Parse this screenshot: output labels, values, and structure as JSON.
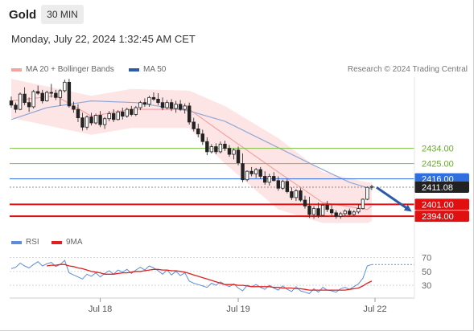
{
  "header": {
    "instrument": "Gold",
    "timeframe": "30 MIN"
  },
  "timestamp": "Monday, July 22, 2024 1:32:45 AM CET",
  "legend": {
    "ma20": {
      "label": "MA 20 + Bollinger Bands",
      "color": "#f4a3a3"
    },
    "ma50": {
      "label": "MA 50",
      "color": "#2b5aa8"
    }
  },
  "copyright": "Research © 2024 Trading Central",
  "rsi_legend": {
    "rsi": {
      "label": "RSI",
      "color": "#5b8dd9"
    },
    "ma9": {
      "label": "9MA",
      "color": "#e02020"
    }
  },
  "chart_data": [
    {
      "type": "candlestick",
      "x_tick_labels": [
        "Jul 18",
        "Jul 19",
        "Jul 22"
      ],
      "ylim": [
        2386,
        2476
      ],
      "candles": [
        [
          2462.0,
          2464.5,
          2458.0,
          2459.5
        ],
        [
          2459.5,
          2461.0,
          2455.0,
          2457.0
        ],
        [
          2457.0,
          2467.0,
          2456.5,
          2466.0
        ],
        [
          2466.0,
          2470.0,
          2459.5,
          2461.0
        ],
        [
          2461.0,
          2464.0,
          2455.5,
          2458.5
        ],
        [
          2458.5,
          2468.5,
          2457.5,
          2467.5
        ],
        [
          2467.5,
          2471.0,
          2465.5,
          2466.5
        ],
        [
          2466.5,
          2468.5,
          2460.5,
          2462.0
        ],
        [
          2462.0,
          2468.0,
          2461.5,
          2467.0
        ],
        [
          2467.0,
          2472.0,
          2464.0,
          2466.5
        ],
        [
          2466.5,
          2468.5,
          2462.5,
          2464.0
        ],
        [
          2464.0,
          2469.0,
          2459.0,
          2468.0
        ],
        [
          2468.0,
          2474.5,
          2467.0,
          2473.0
        ],
        [
          2473.0,
          2475.0,
          2458.0,
          2459.0
        ],
        [
          2459.0,
          2461.5,
          2455.0,
          2457.0
        ],
        [
          2457.0,
          2460.0,
          2449.5,
          2452.0
        ],
        [
          2452.0,
          2455.0,
          2444.5,
          2446.5
        ],
        [
          2446.5,
          2453.5,
          2445.0,
          2452.5
        ],
        [
          2452.5,
          2455.0,
          2447.5,
          2449.0
        ],
        [
          2449.0,
          2454.5,
          2448.0,
          2453.5
        ],
        [
          2453.5,
          2456.0,
          2446.5,
          2448.0
        ],
        [
          2448.0,
          2452.5,
          2445.5,
          2451.5
        ],
        [
          2451.5,
          2456.0,
          2450.0,
          2454.5
        ],
        [
          2454.5,
          2457.0,
          2449.5,
          2451.0
        ],
        [
          2451.0,
          2456.5,
          2450.5,
          2455.5
        ],
        [
          2455.5,
          2458.0,
          2451.0,
          2453.0
        ],
        [
          2453.0,
          2458.0,
          2452.0,
          2457.0
        ],
        [
          2457.0,
          2459.0,
          2453.0,
          2454.0
        ],
        [
          2454.0,
          2459.0,
          2453.0,
          2458.0
        ],
        [
          2458.0,
          2462.0,
          2456.5,
          2461.0
        ],
        [
          2461.0,
          2463.5,
          2458.5,
          2460.0
        ],
        [
          2460.0,
          2465.0,
          2458.5,
          2464.0
        ],
        [
          2464.0,
          2467.0,
          2462.0,
          2463.0
        ],
        [
          2463.0,
          2466.5,
          2459.5,
          2461.0
        ],
        [
          2461.0,
          2464.0,
          2456.5,
          2458.0
        ],
        [
          2458.0,
          2462.5,
          2457.0,
          2461.0
        ],
        [
          2461.0,
          2463.0,
          2456.0,
          2457.5
        ],
        [
          2457.5,
          2462.0,
          2455.0,
          2460.0
        ],
        [
          2460.0,
          2462.5,
          2456.0,
          2457.0
        ],
        [
          2457.0,
          2460.5,
          2454.5,
          2459.0
        ],
        [
          2459.0,
          2461.0,
          2448.0,
          2449.5
        ],
        [
          2449.5,
          2452.0,
          2444.0,
          2445.5
        ],
        [
          2445.5,
          2448.5,
          2440.5,
          2442.5
        ],
        [
          2442.5,
          2445.0,
          2436.0,
          2438.0
        ],
        [
          2438.0,
          2440.5,
          2430.0,
          2432.0
        ],
        [
          2432.0,
          2436.5,
          2431.0,
          2435.0
        ],
        [
          2435.0,
          2437.0,
          2430.5,
          2432.0
        ],
        [
          2432.0,
          2438.0,
          2431.0,
          2436.5
        ],
        [
          2436.5,
          2438.5,
          2432.5,
          2434.0
        ],
        [
          2434.0,
          2436.0,
          2429.0,
          2430.5
        ],
        [
          2430.5,
          2434.0,
          2427.5,
          2433.0
        ],
        [
          2433.0,
          2435.0,
          2424.0,
          2425.5
        ],
        [
          2425.0,
          2431.0,
          2414.0,
          2415.5
        ],
        [
          2415.5,
          2421.0,
          2414.5,
          2420.5
        ],
        [
          2420.5,
          2423.0,
          2417.5,
          2419.0
        ],
        [
          2419.0,
          2422.5,
          2416.5,
          2421.5
        ],
        [
          2421.5,
          2423.0,
          2416.0,
          2417.5
        ],
        [
          2417.5,
          2420.5,
          2412.5,
          2414.0
        ],
        [
          2414.0,
          2419.0,
          2412.0,
          2417.5
        ],
        [
          2417.5,
          2420.0,
          2414.5,
          2415.0
        ],
        [
          2415.0,
          2417.5,
          2409.0,
          2410.5
        ],
        [
          2410.5,
          2415.5,
          2409.5,
          2414.5
        ],
        [
          2414.5,
          2416.0,
          2407.5,
          2408.5
        ],
        [
          2408.5,
          2411.0,
          2403.5,
          2405.0
        ],
        [
          2405.0,
          2410.0,
          2403.0,
          2409.0
        ],
        [
          2409.0,
          2410.5,
          2402.5,
          2403.5
        ],
        [
          2403.5,
          2406.0,
          2398.5,
          2400.0
        ],
        [
          2400.0,
          2405.5,
          2393.0,
          2395.0
        ],
        [
          2395.0,
          2400.0,
          2392.5,
          2398.5
        ],
        [
          2398.5,
          2402.0,
          2393.0,
          2394.5
        ],
        [
          2394.5,
          2401.5,
          2394.0,
          2400.5
        ],
        [
          2400.5,
          2403.0,
          2396.5,
          2398.0
        ],
        [
          2398.0,
          2400.5,
          2394.5,
          2396.0
        ],
        [
          2396.0,
          2397.5,
          2392.5,
          2394.0
        ],
        [
          2394.0,
          2396.5,
          2392.5,
          2395.5
        ],
        [
          2395.5,
          2398.0,
          2394.0,
          2397.0
        ],
        [
          2397.0,
          2398.5,
          2394.5,
          2395.0
        ],
        [
          2395.0,
          2397.5,
          2394.0,
          2396.5
        ],
        [
          2396.5,
          2401.0,
          2395.5,
          2398.5
        ],
        [
          2398.5,
          2404.5,
          2398.0,
          2404.0
        ],
        [
          2404.0,
          2411.5,
          2403.5,
          2411.0
        ],
        [
          2411.0,
          2412.5,
          2409.5,
          2411.5
        ]
      ],
      "indicators": {
        "ma20_upper": [
          [
            0,
            2475
          ],
          [
            18,
            2465
          ],
          [
            27,
            2469
          ],
          [
            40,
            2468
          ],
          [
            48,
            2459
          ],
          [
            60,
            2440
          ],
          [
            70,
            2420
          ],
          [
            80,
            2414
          ],
          [
            81,
            2414
          ]
        ],
        "ma20_lower": [
          [
            0,
            2452
          ],
          [
            18,
            2442
          ],
          [
            27,
            2446
          ],
          [
            40,
            2446
          ],
          [
            48,
            2425
          ],
          [
            60,
            2398
          ],
          [
            70,
            2390
          ],
          [
            80,
            2390
          ],
          [
            81,
            2391
          ]
        ],
        "ma20": [
          [
            0,
            2462
          ],
          [
            10,
            2465
          ],
          [
            18,
            2453
          ],
          [
            27,
            2457
          ],
          [
            40,
            2457
          ],
          [
            48,
            2442
          ],
          [
            60,
            2420
          ],
          [
            70,
            2402
          ],
          [
            80,
            2398
          ],
          [
            81,
            2400
          ]
        ],
        "ma50": [
          [
            0,
            2451
          ],
          [
            8,
            2458
          ],
          [
            18,
            2462
          ],
          [
            28,
            2461
          ],
          [
            40,
            2456
          ],
          [
            48,
            2450
          ],
          [
            58,
            2437
          ],
          [
            68,
            2424
          ],
          [
            76,
            2414
          ],
          [
            81,
            2410
          ]
        ]
      },
      "price_levels": [
        {
          "label": "2434.00",
          "value": 2434.0,
          "color": "#7fbf3f"
        },
        {
          "label": "2425.00",
          "value": 2425.0,
          "color": "#7fbf3f"
        },
        {
          "label": "2416.00",
          "value": 2416.0,
          "color": "#2f6fe0"
        },
        {
          "label": "2411.08",
          "value": 2411.08,
          "color": "#222222"
        },
        {
          "label": "2401.00",
          "value": 2401.0,
          "color": "#e01010"
        },
        {
          "label": "2394.00",
          "value": 2394.0,
          "color": "#e01010"
        }
      ],
      "forecast_arrow": {
        "from": [
          81,
          2411
        ],
        "to": [
          90,
          2398
        ],
        "color": "#2b5aa8"
      }
    },
    {
      "type": "line",
      "title": "RSI",
      "y_tick_labels": [
        "70",
        "50",
        "30"
      ],
      "ylim": [
        15,
        80
      ],
      "series": [
        {
          "name": "RSI",
          "color": "#5b8dd9",
          "values": [
            54,
            56,
            62,
            58,
            55,
            60,
            64,
            58,
            61,
            63,
            57,
            60,
            66,
            48,
            45,
            42,
            39,
            46,
            43,
            48,
            42,
            47,
            51,
            46,
            52,
            49,
            53,
            47,
            52,
            56,
            52,
            58,
            55,
            51,
            46,
            52,
            45,
            50,
            44,
            48,
            36,
            33,
            31,
            29,
            27,
            33,
            30,
            35,
            31,
            28,
            32,
            26,
            22,
            30,
            28,
            31,
            27,
            24,
            30,
            26,
            23,
            29,
            24,
            21,
            28,
            22,
            20,
            18,
            25,
            20,
            27,
            23,
            22,
            20,
            25,
            27,
            24,
            28,
            32,
            40,
            58,
            60
          ]
        },
        {
          "name": "9MA",
          "color": "#e02020",
          "values": [
            null,
            null,
            null,
            null,
            null,
            null,
            null,
            null,
            58,
            59,
            59,
            60,
            60,
            58,
            57,
            55,
            54,
            52,
            50,
            49,
            48,
            46,
            46,
            46,
            47,
            48,
            48,
            49,
            50,
            50,
            51,
            52,
            53,
            53,
            52,
            52,
            51,
            51,
            50,
            49,
            47,
            45,
            43,
            41,
            39,
            37,
            35,
            33,
            31,
            31,
            31,
            30,
            30,
            29,
            28,
            28,
            28,
            28,
            28,
            27,
            27,
            26,
            26,
            26,
            25,
            25,
            24,
            23,
            23,
            23,
            23,
            23,
            23,
            23,
            23,
            23,
            24,
            25,
            26,
            29,
            33,
            36
          ]
        }
      ],
      "last_value_dotted": 60
    }
  ]
}
